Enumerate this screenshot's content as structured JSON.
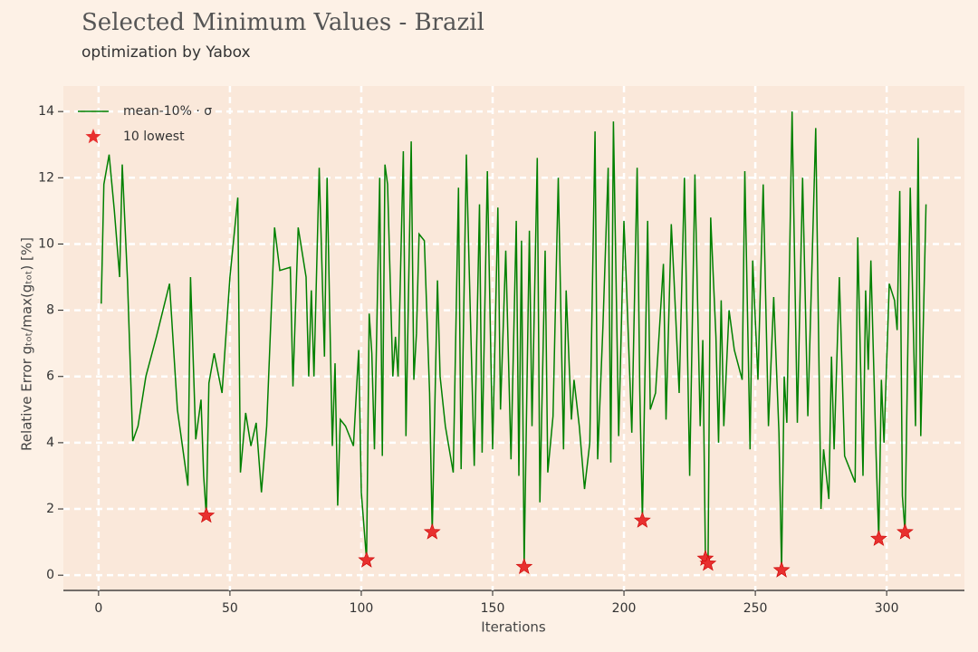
{
  "chart_data": {
    "type": "line",
    "title": "Selected Minimum Values - Brazil",
    "subtitle": "optimization by Yabox",
    "x_label": "Iterations",
    "y_label": "Relative Error gₜₒₜ/max(gₜₒₜ) [%]",
    "xlim": [
      -13.4,
      329.6
    ],
    "ylim": [
      -0.46,
      14.77
    ],
    "xticks": [
      0,
      50,
      100,
      150,
      200,
      250,
      300
    ],
    "yticks": [
      0,
      2,
      4,
      6,
      8,
      10,
      12,
      14
    ],
    "grid": true,
    "legend": "upper left",
    "series": [
      {
        "name": "mean-10% · σ",
        "type": "line",
        "color": "#008000",
        "x": [
          1,
          2,
          4,
          6,
          8,
          9,
          11,
          13,
          15,
          18,
          22,
          27,
          30,
          34,
          35,
          37,
          39,
          40,
          41,
          42,
          44,
          47,
          50,
          53,
          54,
          56,
          58,
          60,
          62,
          64,
          67,
          69,
          73,
          74,
          76,
          79,
          80,
          81,
          82,
          84,
          86,
          87,
          89,
          90,
          91,
          92,
          94,
          97,
          99,
          100,
          102,
          103,
          104,
          105,
          107,
          108,
          109,
          110,
          112,
          113,
          114,
          116,
          117,
          119,
          120,
          121,
          122,
          124,
          126,
          127,
          129,
          130,
          132,
          135,
          137,
          138,
          140,
          141,
          143,
          145,
          146,
          148,
          150,
          152,
          153,
          155,
          157,
          159,
          160,
          161,
          162,
          164,
          165,
          167,
          168,
          170,
          171,
          173,
          175,
          177,
          178,
          180,
          181,
          183,
          185,
          187,
          189,
          190,
          192,
          194,
          195,
          196,
          198,
          200,
          201,
          203,
          205,
          206,
          207,
          209,
          210,
          212,
          215,
          216,
          218,
          219,
          221,
          223,
          225,
          227,
          229,
          230,
          231,
          232,
          233,
          235,
          236,
          237,
          238,
          240,
          242,
          245,
          246,
          248,
          249,
          251,
          253,
          255,
          257,
          259,
          260,
          261,
          262,
          264,
          266,
          268,
          270,
          273,
          275,
          276,
          278,
          279,
          280,
          282,
          284,
          288,
          289,
          291,
          292,
          293,
          294,
          296,
          297,
          298,
          299,
          301,
          303,
          304,
          305,
          306,
          307,
          309,
          311,
          312,
          313,
          315
        ],
        "values": [
          8.2,
          11.8,
          12.7,
          11.0,
          9.0,
          12.4,
          8.9,
          4.05,
          4.5,
          6.0,
          7.2,
          8.8,
          5.0,
          2.7,
          9.0,
          4.1,
          5.3,
          3.0,
          1.8,
          5.8,
          6.7,
          5.5,
          9.0,
          11.4,
          3.1,
          4.9,
          3.9,
          4.6,
          2.5,
          4.5,
          10.5,
          9.2,
          9.3,
          5.7,
          10.5,
          9.0,
          6.0,
          8.6,
          6.0,
          12.3,
          6.6,
          12.0,
          3.9,
          6.4,
          2.1,
          4.7,
          4.5,
          3.9,
          6.8,
          2.5,
          0.45,
          7.9,
          6.7,
          3.8,
          12.0,
          3.6,
          12.4,
          11.8,
          6.0,
          7.2,
          6.0,
          12.8,
          4.2,
          13.1,
          5.9,
          7.3,
          10.3,
          10.1,
          5.5,
          1.3,
          8.9,
          6.0,
          4.5,
          3.1,
          11.7,
          3.2,
          12.7,
          9.5,
          3.3,
          11.2,
          3.7,
          12.2,
          3.8,
          11.1,
          5.0,
          9.8,
          3.5,
          10.7,
          3.0,
          10.1,
          0.25,
          10.4,
          4.5,
          12.6,
          2.2,
          9.8,
          3.1,
          4.8,
          12.0,
          3.8,
          8.6,
          4.7,
          5.9,
          4.5,
          2.6,
          4.0,
          13.4,
          3.5,
          7.5,
          12.3,
          3.4,
          13.7,
          4.2,
          10.7,
          8.7,
          4.3,
          12.3,
          5.6,
          1.65,
          10.7,
          5.0,
          5.5,
          9.4,
          4.7,
          10.6,
          9.0,
          5.5,
          12.0,
          3.0,
          12.1,
          4.5,
          7.1,
          0.5,
          0.35,
          10.8,
          7.2,
          4.0,
          8.3,
          4.5,
          8.0,
          6.8,
          5.9,
          12.2,
          3.8,
          9.5,
          5.9,
          11.8,
          4.5,
          8.4,
          4.3,
          0.15,
          6.0,
          4.6,
          14.0,
          4.6,
          12.0,
          4.8,
          13.5,
          2.0,
          3.8,
          2.3,
          6.6,
          3.8,
          9.0,
          3.6,
          2.8,
          10.2,
          3.0,
          8.6,
          6.2,
          9.5,
          3.6,
          1.1,
          5.9,
          4.0,
          8.8,
          8.3,
          7.4,
          11.6,
          2.4,
          1.3,
          11.7,
          4.5,
          13.2,
          4.2,
          11.2
        ]
      },
      {
        "name": "10 lowest",
        "type": "scatter",
        "color": "#e8302f",
        "x": [
          41,
          102,
          127,
          162,
          207,
          231,
          232,
          260,
          297,
          307
        ],
        "values": [
          1.8,
          0.45,
          1.3,
          0.25,
          1.65,
          0.5,
          0.35,
          0.15,
          1.1,
          1.3
        ]
      }
    ]
  }
}
